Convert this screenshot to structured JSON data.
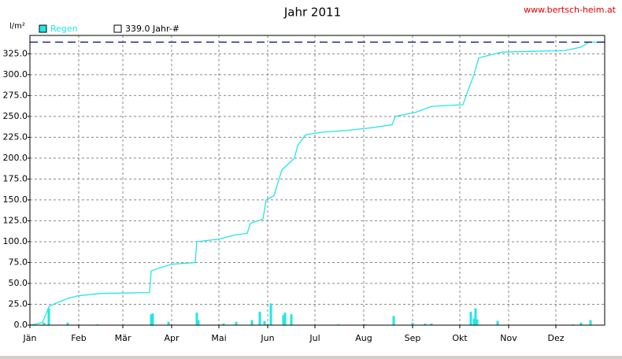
{
  "chart_data": {
    "type": "bar-line",
    "title": "Jahr 2011",
    "credit": "www.bertsch-heim.at",
    "y_label": "l/m²",
    "xlim": [
      0,
      365
    ],
    "xticks": [
      {
        "value": 0,
        "label": "Jän"
      },
      {
        "value": 31,
        "label": "Feb"
      },
      {
        "value": 59,
        "label": "Mär"
      },
      {
        "value": 90,
        "label": "Apr"
      },
      {
        "value": 120,
        "label": "Mai"
      },
      {
        "value": 151,
        "label": "Jun"
      },
      {
        "value": 181,
        "label": "Jul"
      },
      {
        "value": 212,
        "label": "Aug"
      },
      {
        "value": 243,
        "label": "Sep"
      },
      {
        "value": 273,
        "label": "Okt"
      },
      {
        "value": 304,
        "label": "Nov"
      },
      {
        "value": 334,
        "label": "Dez"
      }
    ],
    "ylim": [
      0,
      347
    ],
    "yticks": [
      {
        "value": 0,
        "label": "0.0"
      },
      {
        "value": 25,
        "label": "25.0"
      },
      {
        "value": 50,
        "label": "50.0"
      },
      {
        "value": 75,
        "label": "75.0"
      },
      {
        "value": 100,
        "label": "100.0"
      },
      {
        "value": 125,
        "label": "125.0"
      },
      {
        "value": 150,
        "label": "150.0"
      },
      {
        "value": 175,
        "label": "175.0"
      },
      {
        "value": 200,
        "label": "200.0"
      },
      {
        "value": 225,
        "label": "225.0"
      },
      {
        "value": 250,
        "label": "250.0"
      },
      {
        "value": 275,
        "label": "275.0"
      },
      {
        "value": 300,
        "label": "300.0"
      },
      {
        "value": 325,
        "label": "325.0"
      }
    ],
    "grid": true,
    "series": [
      {
        "name": "Regen",
        "color": "#22e6e6",
        "x": [
          9,
          12,
          24,
          43,
          77,
          78,
          88,
          106,
          107,
          123,
          131,
          141,
          146,
          149,
          153,
          161,
          162,
          166,
          196,
          213,
          231,
          243,
          251,
          255,
          280,
          282,
          283,
          284,
          297,
          345,
          350,
          356
        ],
        "values": [
          3,
          20,
          3,
          1,
          13,
          14,
          4,
          15,
          6,
          2,
          4,
          6,
          16,
          5,
          26,
          12,
          15,
          13,
          1,
          1,
          11,
          3,
          2,
          2,
          16,
          8,
          20,
          7,
          5,
          1,
          3,
          6
        ]
      }
    ],
    "cumulative": {
      "color": "#22e6e6",
      "x": [
        0,
        8,
        12,
        15,
        24,
        30,
        45,
        76,
        77,
        85,
        90,
        105,
        106,
        120,
        130,
        138,
        140,
        148,
        150,
        155,
        160,
        168,
        170,
        175,
        185,
        200,
        215,
        230,
        232,
        245,
        255,
        275,
        278,
        282,
        285,
        295,
        300,
        340,
        350,
        355,
        365
      ],
      "values": [
        0,
        3,
        22,
        25,
        32,
        35,
        38,
        39,
        65,
        70,
        73,
        75,
        100,
        103,
        108,
        110,
        122,
        127,
        150,
        155,
        186,
        200,
        215,
        228,
        231,
        233,
        236,
        240,
        250,
        255,
        262,
        264,
        280,
        300,
        320,
        325,
        327,
        329,
        333,
        339,
        339
      ]
    },
    "reference": {
      "value": 339,
      "label": "339.0 Jahr-#",
      "color": "#000080"
    }
  }
}
